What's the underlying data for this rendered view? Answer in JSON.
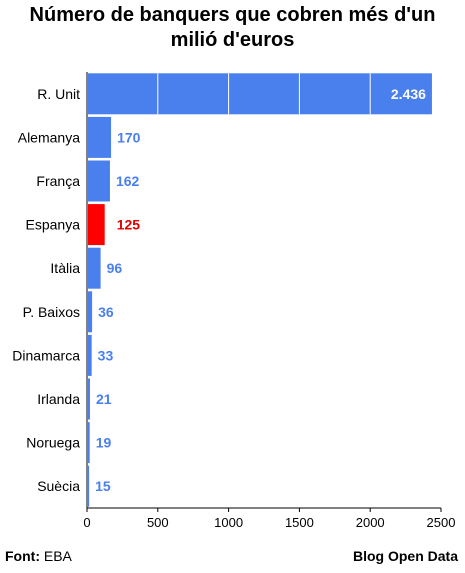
{
  "chart_data": {
    "type": "bar",
    "orientation": "horizontal",
    "title_line1": "Número de banquers que cobren més d'un",
    "title_line2": "milió d'euros",
    "categories": [
      "R. Unit",
      "Alemanya",
      "França",
      "Espanya",
      "Itàlia",
      "P. Baixos",
      "Dinamarca",
      "Irlanda",
      "Noruega",
      "Suècia"
    ],
    "values": [
      2436,
      170,
      162,
      125,
      96,
      36,
      33,
      21,
      19,
      15
    ],
    "value_labels": [
      "2.436",
      "170",
      "162",
      "125",
      "96",
      "36",
      "33",
      "21",
      "19",
      "15"
    ],
    "highlight_category": "Espanya",
    "xlim": [
      0,
      2500
    ],
    "xticks": [
      0,
      500,
      1000,
      1500,
      2000,
      2500
    ],
    "grid": "vertical lines inside bars only",
    "colors": {
      "bar": "#4a7fee",
      "highlight": "#ff0000",
      "label": "#4a7fee",
      "highlight_label": "#e00000"
    }
  },
  "footer": {
    "source_label": "Font:",
    "source_value": " EBA",
    "credit": "Blog Open Data"
  }
}
